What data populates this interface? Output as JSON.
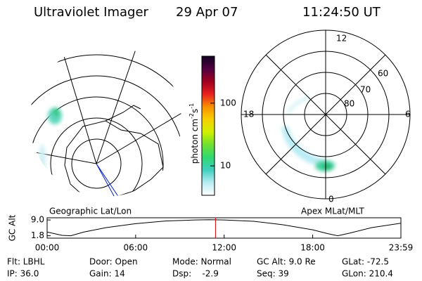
{
  "header": {
    "title": "Ultraviolet Imager",
    "date": "29 Apr 07",
    "time": "11:24:50 UT"
  },
  "maps": {
    "left_label": "Geographic Lat/Lon",
    "right_label": "Apex MLat/MLT",
    "mlt_labels": [
      "12",
      "18",
      "6",
      "0"
    ],
    "mlat_labels": [
      "60",
      "70",
      "80"
    ]
  },
  "colorbar": {
    "label": [
      "photon cm",
      "-2",
      "s",
      "-1"
    ],
    "scale": "log",
    "lim": [
      3.4,
      560
    ],
    "ticks": [
      10,
      100
    ],
    "colors": [
      "#ffffff",
      "#b8ecf4",
      "#40d0c0",
      "#30d870",
      "#70e030",
      "#d0f000",
      "#f8d000",
      "#f89000",
      "#e82020",
      "#a00020",
      "#500040",
      "#100020"
    ]
  },
  "chart_data": {
    "type": "line",
    "y_label": "GC Alt",
    "color": "#000000",
    "x": [
      0,
      1,
      1.6,
      2.5,
      4,
      6,
      8,
      10,
      11,
      12,
      14,
      16,
      18,
      19,
      19.7,
      20.5,
      22,
      23.98
    ],
    "values": [
      3.5,
      2.0,
      1.8,
      3.5,
      5.5,
      7.3,
      8.5,
      9.0,
      9.1,
      9.0,
      8.4,
      6.8,
      4.5,
      2.8,
      1.8,
      3.0,
      5.5,
      7.5
    ],
    "xlim": [
      0,
      23.98
    ],
    "ylim": [
      0.7,
      10
    ],
    "xticks": [
      {
        "value": 0,
        "label": "00:00"
      },
      {
        "value": 6,
        "label": "06:00"
      },
      {
        "value": 12,
        "label": "12:00"
      },
      {
        "value": 18,
        "label": "18:00"
      },
      {
        "value": 23.98,
        "label": "23:59"
      }
    ],
    "yticks": [
      {
        "value": 9,
        "label": "9.0"
      },
      1.8
    ],
    "marker": {
      "x": 11.414,
      "color": "#e00000"
    }
  },
  "info": {
    "rows": [
      [
        "Flt: LBHL",
        "Door: Open",
        "Mode: Normal",
        "GC Alt: 9.0 Re",
        "GLat: -72.5"
      ],
      [
        "IP: 36.0",
        "Gain: 14",
        "Dsp:    -2.9",
        "Seq: 39",
        "GLon: 210.4"
      ]
    ]
  }
}
